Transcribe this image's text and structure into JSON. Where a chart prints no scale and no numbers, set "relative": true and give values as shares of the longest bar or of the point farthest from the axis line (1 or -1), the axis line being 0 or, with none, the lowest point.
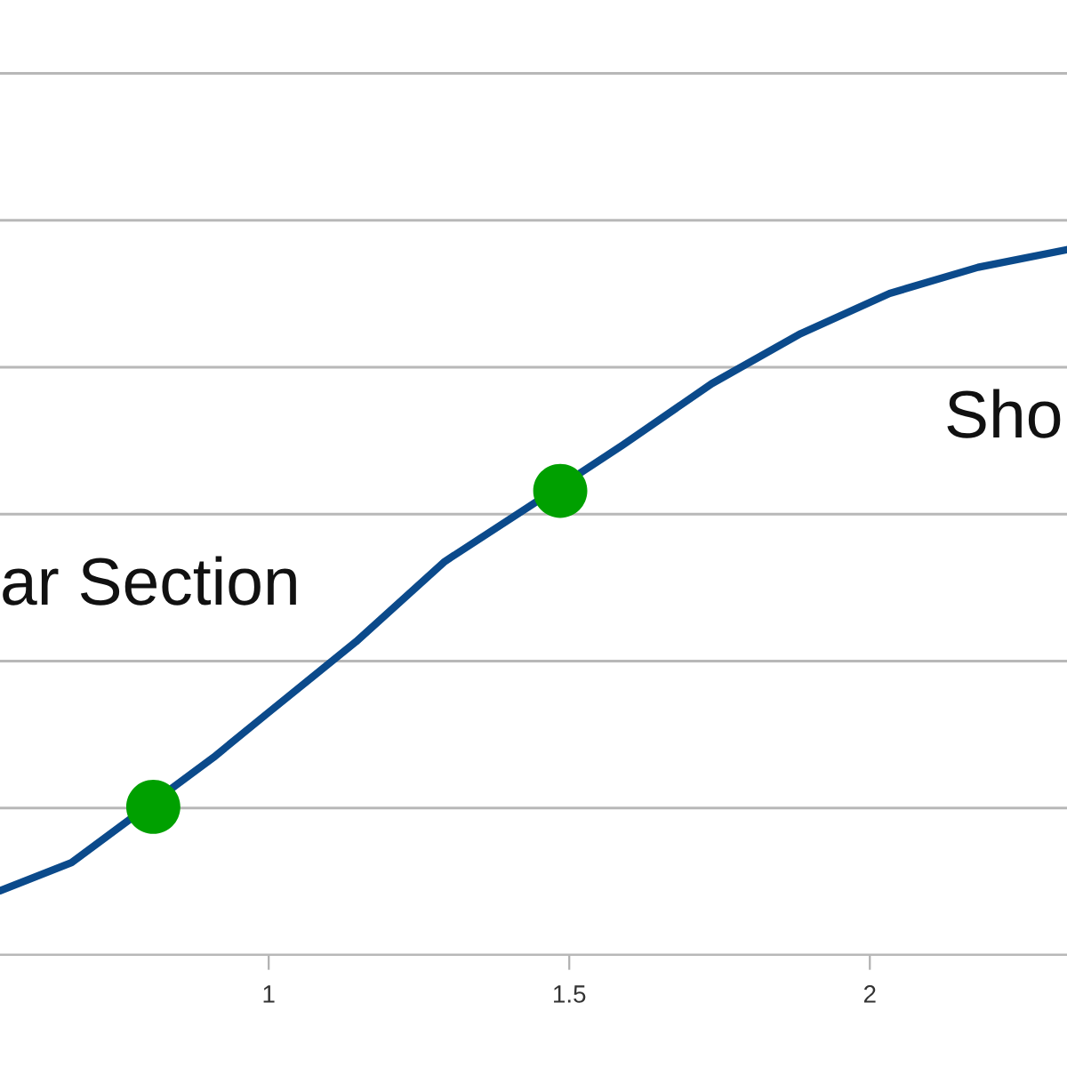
{
  "chart_data": {
    "type": "line",
    "relative": true,
    "grid": "y",
    "xlim": [
      0.553,
      2.328
    ],
    "xticks": [
      1,
      1.5,
      2
    ],
    "annotations": [
      "ar Section",
      "Sho"
    ],
    "series": [
      {
        "color": "#0b4a8b",
        "x": [
          0.553,
          0.672,
          0.908,
          1.0,
          1.145,
          1.293,
          1.441,
          1.589,
          1.737,
          1.885,
          2.033,
          2.18,
          2.328
        ],
        "values": [
          0.091,
          0.131,
          0.28,
          0.344,
          0.444,
          0.558,
          0.64,
          0.723,
          0.81,
          0.881,
          0.938,
          0.975,
          1.0
        ],
        "marker": "none"
      },
      {
        "type": "scatter",
        "color": "#00a000",
        "x": [
          0.808,
          1.485
        ],
        "values": [
          0.21,
          0.658
        ],
        "marker": "circle"
      }
    ]
  }
}
